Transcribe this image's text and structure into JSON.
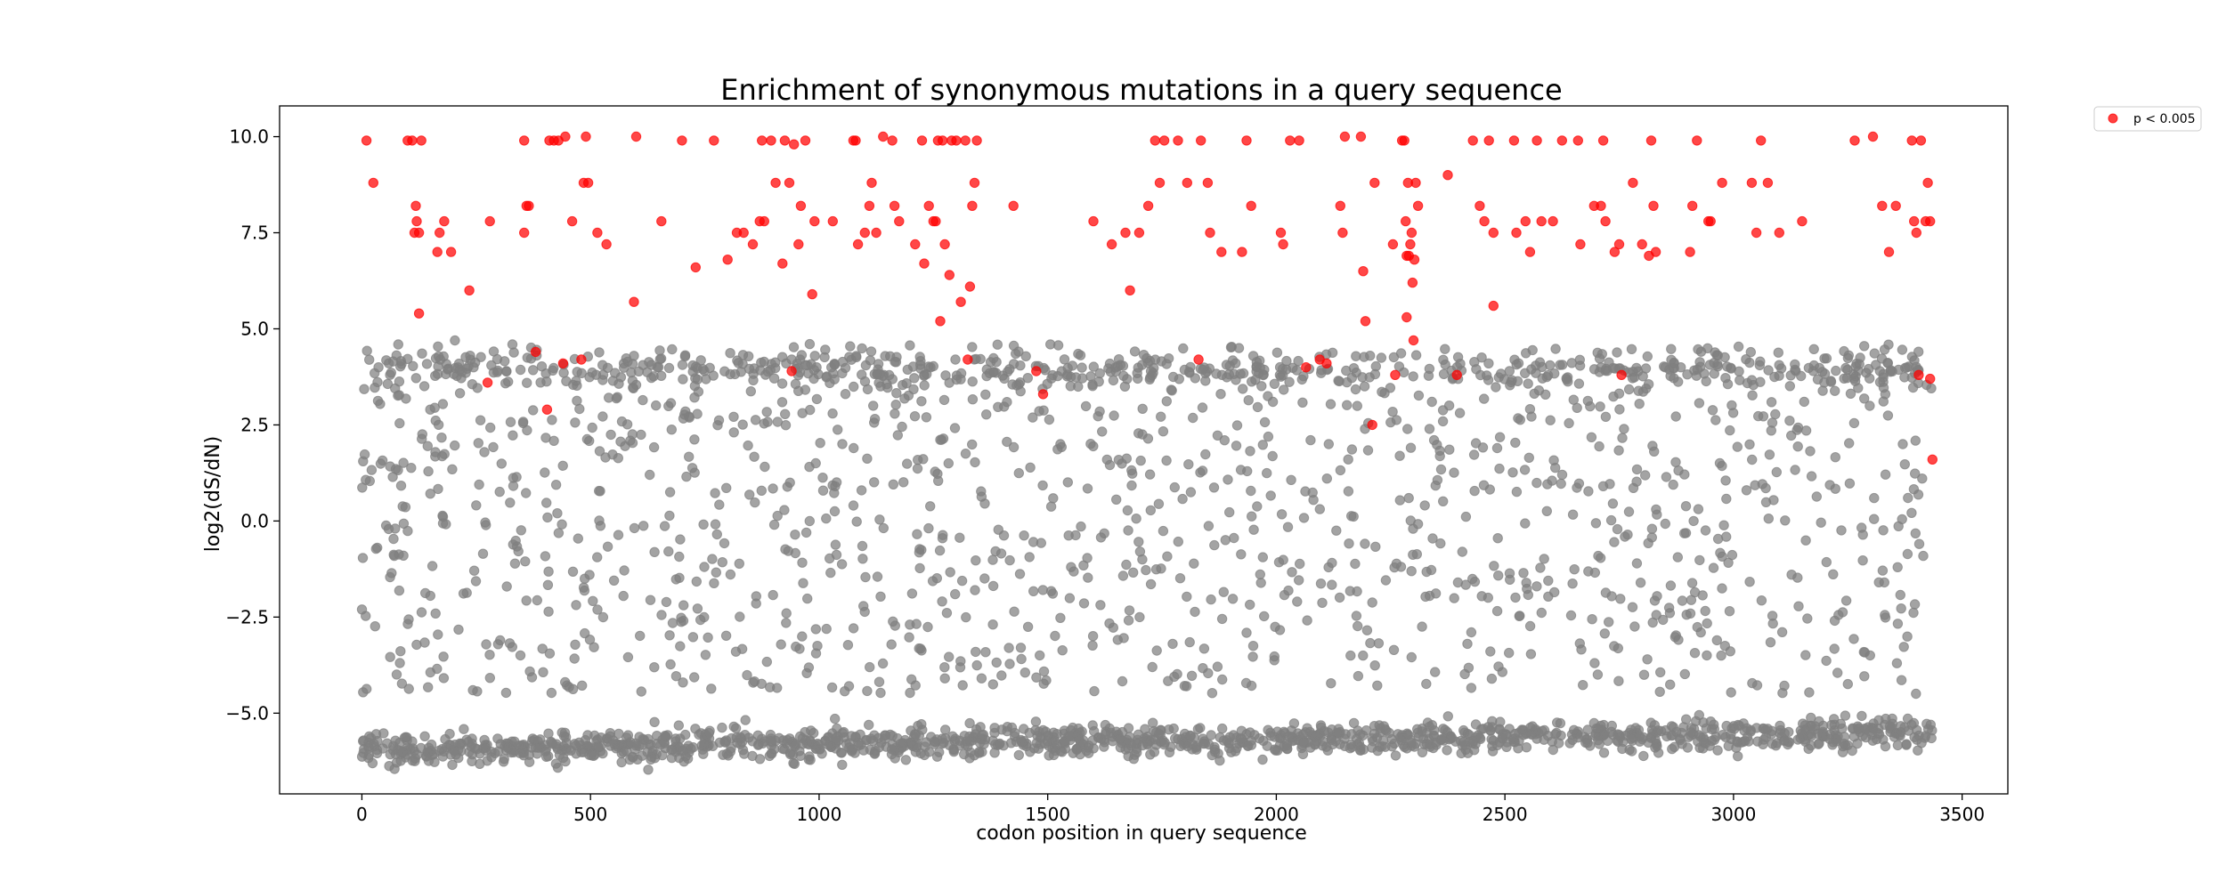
{
  "chart_data": {
    "type": "scatter",
    "title": "Enrichment of synonymous mutations in a query sequence",
    "xlabel": "codon position in query sequence",
    "ylabel": "log2(dS/dN)",
    "xlim": [
      -180,
      3600
    ],
    "ylim": [
      -7.1,
      10.8
    ],
    "xticks": [
      0,
      500,
      1000,
      1500,
      2000,
      2500,
      3000,
      3500
    ],
    "yticks": [
      -5.0,
      -2.5,
      0.0,
      2.5,
      5.0,
      7.5,
      10.0
    ],
    "xtick_labels": [
      "0",
      "500",
      "1000",
      "1500",
      "2000",
      "2500",
      "3000",
      "3500"
    ],
    "ytick_labels": [
      "−5.0",
      "−2.5",
      "0.0",
      "2.5",
      "5.0",
      "7.5",
      "10.0"
    ],
    "grid": false,
    "legend_position": "outside top-right",
    "colors": {
      "significant": "#ff0000",
      "background": "#808080"
    },
    "series": [
      {
        "name": "p < 0.005",
        "color": "#ff0000",
        "points": [
          [
            10,
            9.9
          ],
          [
            25,
            8.8
          ],
          [
            100,
            9.9
          ],
          [
            110,
            9.9
          ],
          [
            118,
            8.2
          ],
          [
            120,
            7.8
          ],
          [
            115,
            7.5
          ],
          [
            125,
            7.5
          ],
          [
            130,
            9.9
          ],
          [
            125,
            5.4
          ],
          [
            165,
            7.0
          ],
          [
            170,
            7.5
          ],
          [
            180,
            7.8
          ],
          [
            195,
            7.0
          ],
          [
            235,
            6.0
          ],
          [
            275,
            3.6
          ],
          [
            280,
            7.8
          ],
          [
            355,
            9.9
          ],
          [
            355,
            7.5
          ],
          [
            360,
            8.2
          ],
          [
            365,
            8.2
          ],
          [
            380,
            4.4
          ],
          [
            405,
            2.9
          ],
          [
            410,
            9.9
          ],
          [
            420,
            9.9
          ],
          [
            430,
            9.9
          ],
          [
            440,
            4.1
          ],
          [
            445,
            10.0
          ],
          [
            460,
            7.8
          ],
          [
            480,
            4.2
          ],
          [
            485,
            8.8
          ],
          [
            490,
            10.0
          ],
          [
            495,
            8.8
          ],
          [
            515,
            7.5
          ],
          [
            535,
            7.2
          ],
          [
            595,
            5.7
          ],
          [
            600,
            10.0
          ],
          [
            655,
            7.8
          ],
          [
            700,
            9.9
          ],
          [
            730,
            6.6
          ],
          [
            770,
            9.9
          ],
          [
            800,
            6.8
          ],
          [
            820,
            7.5
          ],
          [
            835,
            7.5
          ],
          [
            855,
            7.2
          ],
          [
            870,
            7.8
          ],
          [
            875,
            9.9
          ],
          [
            880,
            7.8
          ],
          [
            895,
            9.9
          ],
          [
            905,
            8.8
          ],
          [
            920,
            6.7
          ],
          [
            925,
            9.9
          ],
          [
            935,
            8.8
          ],
          [
            940,
            3.9
          ],
          [
            945,
            9.8
          ],
          [
            955,
            7.2
          ],
          [
            960,
            8.2
          ],
          [
            970,
            9.9
          ],
          [
            985,
            5.9
          ],
          [
            990,
            7.8
          ],
          [
            1030,
            7.8
          ],
          [
            1075,
            9.9
          ],
          [
            1080,
            9.9
          ],
          [
            1085,
            7.2
          ],
          [
            1100,
            7.5
          ],
          [
            1110,
            8.2
          ],
          [
            1115,
            8.8
          ],
          [
            1125,
            7.5
          ],
          [
            1140,
            10.0
          ],
          [
            1160,
            9.9
          ],
          [
            1165,
            8.2
          ],
          [
            1175,
            7.8
          ],
          [
            1210,
            7.2
          ],
          [
            1225,
            9.9
          ],
          [
            1230,
            6.7
          ],
          [
            1240,
            8.2
          ],
          [
            1250,
            7.8
          ],
          [
            1255,
            7.8
          ],
          [
            1260,
            9.9
          ],
          [
            1265,
            5.2
          ],
          [
            1270,
            9.9
          ],
          [
            1275,
            7.2
          ],
          [
            1285,
            6.4
          ],
          [
            1290,
            9.9
          ],
          [
            1300,
            9.9
          ],
          [
            1310,
            5.7
          ],
          [
            1320,
            9.9
          ],
          [
            1330,
            6.1
          ],
          [
            1325,
            4.2
          ],
          [
            1340,
            8.8
          ],
          [
            1345,
            9.9
          ],
          [
            1335,
            8.2
          ],
          [
            1425,
            8.2
          ],
          [
            1475,
            3.9
          ],
          [
            1490,
            3.3
          ],
          [
            1600,
            7.8
          ],
          [
            1640,
            7.2
          ],
          [
            1670,
            7.5
          ],
          [
            1680,
            6.0
          ],
          [
            1700,
            7.5
          ],
          [
            1720,
            8.2
          ],
          [
            1735,
            9.9
          ],
          [
            1745,
            8.8
          ],
          [
            1755,
            9.9
          ],
          [
            1785,
            9.9
          ],
          [
            1805,
            8.8
          ],
          [
            1830,
            4.2
          ],
          [
            1835,
            9.9
          ],
          [
            1850,
            8.8
          ],
          [
            1855,
            7.5
          ],
          [
            1880,
            7.0
          ],
          [
            1925,
            7.0
          ],
          [
            1935,
            9.9
          ],
          [
            1945,
            8.2
          ],
          [
            2010,
            7.5
          ],
          [
            2015,
            7.2
          ],
          [
            2030,
            9.9
          ],
          [
            2050,
            9.9
          ],
          [
            2065,
            4.0
          ],
          [
            2095,
            4.2
          ],
          [
            2110,
            4.1
          ],
          [
            2140,
            8.2
          ],
          [
            2145,
            7.5
          ],
          [
            2150,
            10.0
          ],
          [
            2185,
            10.0
          ],
          [
            2190,
            6.5
          ],
          [
            2195,
            5.2
          ],
          [
            2210,
            2.5
          ],
          [
            2215,
            8.8
          ],
          [
            2255,
            7.2
          ],
          [
            2260,
            3.8
          ],
          [
            2275,
            9.9
          ],
          [
            2280,
            9.9
          ],
          [
            2283,
            7.8
          ],
          [
            2285,
            6.9
          ],
          [
            2285,
            5.3
          ],
          [
            2288,
            8.8
          ],
          [
            2290,
            6.9
          ],
          [
            2293,
            7.2
          ],
          [
            2296,
            7.5
          ],
          [
            2298,
            6.2
          ],
          [
            2300,
            4.7
          ],
          [
            2302,
            6.8
          ],
          [
            2305,
            8.8
          ],
          [
            2310,
            8.2
          ],
          [
            2375,
            9.0
          ],
          [
            2395,
            3.8
          ],
          [
            2430,
            9.9
          ],
          [
            2445,
            8.2
          ],
          [
            2455,
            7.8
          ],
          [
            2465,
            9.9
          ],
          [
            2475,
            7.5
          ],
          [
            2475,
            5.6
          ],
          [
            2520,
            9.9
          ],
          [
            2525,
            7.5
          ],
          [
            2545,
            7.8
          ],
          [
            2555,
            7.0
          ],
          [
            2570,
            9.9
          ],
          [
            2580,
            7.8
          ],
          [
            2605,
            7.8
          ],
          [
            2625,
            9.9
          ],
          [
            2660,
            9.9
          ],
          [
            2665,
            7.2
          ],
          [
            2695,
            8.2
          ],
          [
            2710,
            8.2
          ],
          [
            2715,
            9.9
          ],
          [
            2720,
            7.8
          ],
          [
            2740,
            7.0
          ],
          [
            2750,
            7.2
          ],
          [
            2755,
            3.8
          ],
          [
            2780,
            8.8
          ],
          [
            2800,
            7.2
          ],
          [
            2815,
            6.9
          ],
          [
            2820,
            9.9
          ],
          [
            2825,
            8.2
          ],
          [
            2830,
            7.0
          ],
          [
            2905,
            7.0
          ],
          [
            2910,
            8.2
          ],
          [
            2920,
            9.9
          ],
          [
            2945,
            7.8
          ],
          [
            2950,
            7.8
          ],
          [
            2975,
            8.8
          ],
          [
            3040,
            8.8
          ],
          [
            3050,
            7.5
          ],
          [
            3060,
            9.9
          ],
          [
            3075,
            8.8
          ],
          [
            3100,
            7.5
          ],
          [
            3150,
            7.8
          ],
          [
            3265,
            9.9
          ],
          [
            3305,
            10.0
          ],
          [
            3325,
            8.2
          ],
          [
            3340,
            7.0
          ],
          [
            3355,
            8.2
          ],
          [
            3390,
            9.9
          ],
          [
            3395,
            7.8
          ],
          [
            3400,
            7.5
          ],
          [
            3405,
            3.8
          ],
          [
            3410,
            9.9
          ],
          [
            3420,
            7.8
          ],
          [
            3425,
            8.8
          ],
          [
            3430,
            7.8
          ],
          [
            3430,
            3.7
          ],
          [
            3435,
            1.6
          ]
        ]
      },
      {
        "name": "",
        "color": "#808080",
        "generator": {
          "x_start": 0,
          "x_end": 3435,
          "count": 3100,
          "bands": [
            {
              "share": 0.42,
              "center": -5.95,
              "spread": 0.2,
              "center_end": -5.5
            },
            {
              "share": 0.16,
              "center": 3.9,
              "spread": 0.25
            },
            {
              "share": 0.42,
              "uniform": [
                -4.5,
                4.6
              ]
            }
          ]
        }
      }
    ]
  }
}
